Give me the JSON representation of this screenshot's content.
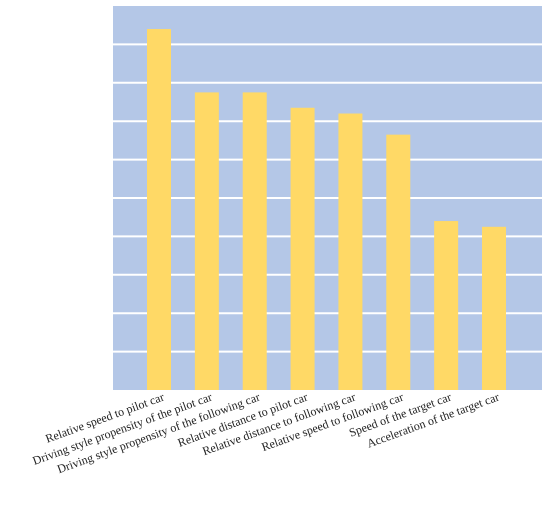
{
  "chart_data": {
    "type": "bar",
    "title": "",
    "xlabel": "",
    "ylabel": "",
    "categories": [
      "Relative speed to pilot car",
      "Driving style propensity of the pilot car",
      "Driving style propensity of the following car",
      "Relative distance to pilot car",
      "Relative distance to following car",
      "Relative speed to following car",
      "Speed of the target car",
      "Acceleration of the target car"
    ],
    "values": [
      9.4,
      7.75,
      7.75,
      7.35,
      7.2,
      6.65,
      4.4,
      4.25
    ],
    "ylim": [
      0,
      10
    ],
    "grid_step": 1,
    "grid": true,
    "legend": false,
    "colors": {
      "plot_background": "#b4c7e7",
      "bar": "#ffd966",
      "grid": "#ffffff"
    }
  }
}
